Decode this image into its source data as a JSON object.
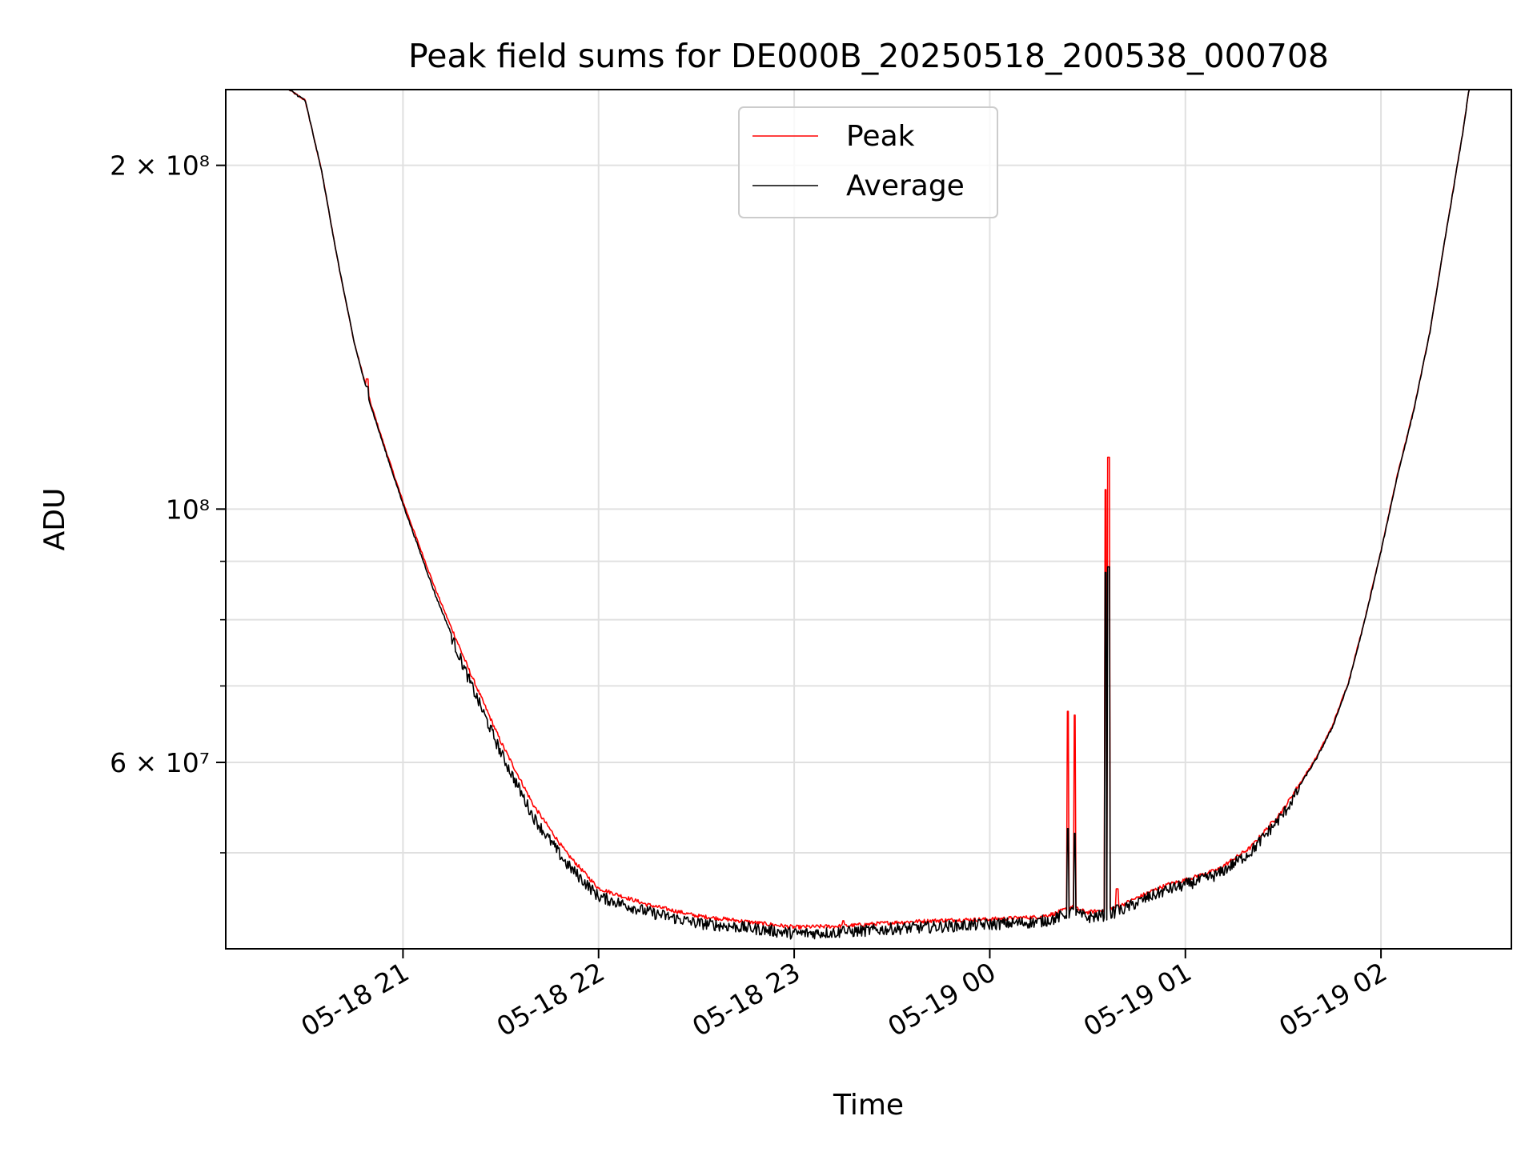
{
  "chart_data": {
    "type": "line",
    "title": "Peak field sums for DE000B_20250518_200538_000708",
    "xlabel": "Time",
    "ylabel": "ADU",
    "yscale": "log",
    "ylim": [
      41200000,
      233000000
    ],
    "xlim": [
      "2025-05-18 20:05:38",
      "2025-05-19 02:40:00"
    ],
    "grid": true,
    "legend_position": "top-center",
    "x_ticks": [
      {
        "value": "2025-05-18 21:00:00",
        "label": "05-18 21"
      },
      {
        "value": "2025-05-18 22:00:00",
        "label": "05-18 22"
      },
      {
        "value": "2025-05-18 23:00:00",
        "label": "05-18 23"
      },
      {
        "value": "2025-05-19 00:00:00",
        "label": "05-19 00"
      },
      {
        "value": "2025-05-19 01:00:00",
        "label": "05-19 01"
      },
      {
        "value": "2025-05-19 02:00:00",
        "label": "05-19 02"
      }
    ],
    "y_major_ticks": [
      {
        "value": 60000000,
        "label": "6 × 10⁷"
      },
      {
        "value": 100000000,
        "label": "10⁸"
      },
      {
        "value": 200000000,
        "label": "2 × 10⁸"
      }
    ],
    "y_minor_ticks": [
      50000000,
      70000000,
      80000000,
      90000000
    ],
    "x": [
      "2025-05-18 20:05:38",
      "2025-05-18 20:25:00",
      "2025-05-18 20:30:00",
      "2025-05-18 20:35:00",
      "2025-05-18 20:40:00",
      "2025-05-18 20:45:00",
      "2025-05-18 20:50:00",
      "2025-05-18 20:55:00",
      "2025-05-18 21:00:00",
      "2025-05-18 21:10:00",
      "2025-05-18 21:20:00",
      "2025-05-18 21:30:00",
      "2025-05-18 21:40:00",
      "2025-05-18 21:50:00",
      "2025-05-18 22:00:00",
      "2025-05-18 22:15:00",
      "2025-05-18 22:30:00",
      "2025-05-18 22:45:00",
      "2025-05-18 23:00:00",
      "2025-05-18 23:15:00",
      "2025-05-18 23:30:00",
      "2025-05-18 23:45:00",
      "2025-05-19 00:00:00",
      "2025-05-19 00:15:00",
      "2025-05-19 00:20:00",
      "2025-05-19 00:25:00",
      "2025-05-19 00:30:00",
      "2025-05-19 00:35:00",
      "2025-05-19 00:40:00",
      "2025-05-19 00:45:00",
      "2025-05-19 00:50:00",
      "2025-05-19 00:55:00",
      "2025-05-19 01:00:00",
      "2025-05-19 01:10:00",
      "2025-05-19 01:20:00",
      "2025-05-19 01:30:00",
      "2025-05-19 01:40:00",
      "2025-05-19 01:45:00",
      "2025-05-19 01:50:00",
      "2025-05-19 01:55:00",
      "2025-05-19 02:00:00",
      "2025-05-19 02:05:00",
      "2025-05-19 02:10:00",
      "2025-05-19 02:15:00",
      "2025-05-19 02:20:00",
      "2025-05-19 02:25:00",
      "2025-05-19 02:27:00",
      "2025-05-19 02:40:00"
    ],
    "series": [
      {
        "name": "Peak",
        "color": "#ff0000",
        "values": [
          233000000,
          233000000,
          228000000,
          198000000,
          165000000,
          140000000,
          124000000,
          112000000,
          101500000,
          85000000,
          72500000,
          62500000,
          55000000,
          50000000,
          46500000,
          45000000,
          44000000,
          43500000,
          43000000,
          43100000,
          43400000,
          43600000,
          43700000,
          43900000,
          44200000,
          44800000,
          44300000,
          44500000,
          44900000,
          45600000,
          46300000,
          46900000,
          47300000,
          48300000,
          50500000,
          54500000,
          60500000,
          64500000,
          70500000,
          80000000,
          92000000,
          107000000,
          122000000,
          143000000,
          175000000,
          213000000,
          233000000,
          233000000
        ]
      },
      {
        "name": "Average",
        "color": "#000000",
        "values": [
          233000000,
          233000000,
          228000000,
          198000000,
          165000000,
          140000000,
          123500000,
          111500000,
          101000000,
          84000000,
          71500000,
          61500000,
          54000000,
          49200000,
          46000000,
          44600000,
          43600000,
          43200000,
          42700000,
          42800000,
          43100000,
          43300000,
          43500000,
          43700000,
          44000000,
          44600000,
          44100000,
          44300000,
          44700000,
          45400000,
          46100000,
          46700000,
          47100000,
          48100000,
          50300000,
          54300000,
          60300000,
          64300000,
          70300000,
          79800000,
          91800000,
          106800000,
          121800000,
          142800000,
          174800000,
          212800000,
          233000000,
          233000000
        ]
      }
    ],
    "spikes": [
      {
        "time": "2025-05-18 20:49:00",
        "peak": 130000000,
        "average": 128000000
      },
      {
        "time": "2025-05-18 23:15:00",
        "peak": 43600000,
        "average": 43100000
      },
      {
        "time": "2025-05-19 00:24:00",
        "peak": 66500000,
        "average": 52500000
      },
      {
        "time": "2025-05-19 00:26:00",
        "peak": 66000000,
        "average": 52000000
      },
      {
        "time": "2025-05-19 00:35:30",
        "peak": 104000000,
        "average": 88000000
      },
      {
        "time": "2025-05-19 00:36:30",
        "peak": 111000000,
        "average": 89000000
      },
      {
        "time": "2025-05-19 00:39:00",
        "peak": 46500000,
        "average": 45000000
      }
    ]
  }
}
